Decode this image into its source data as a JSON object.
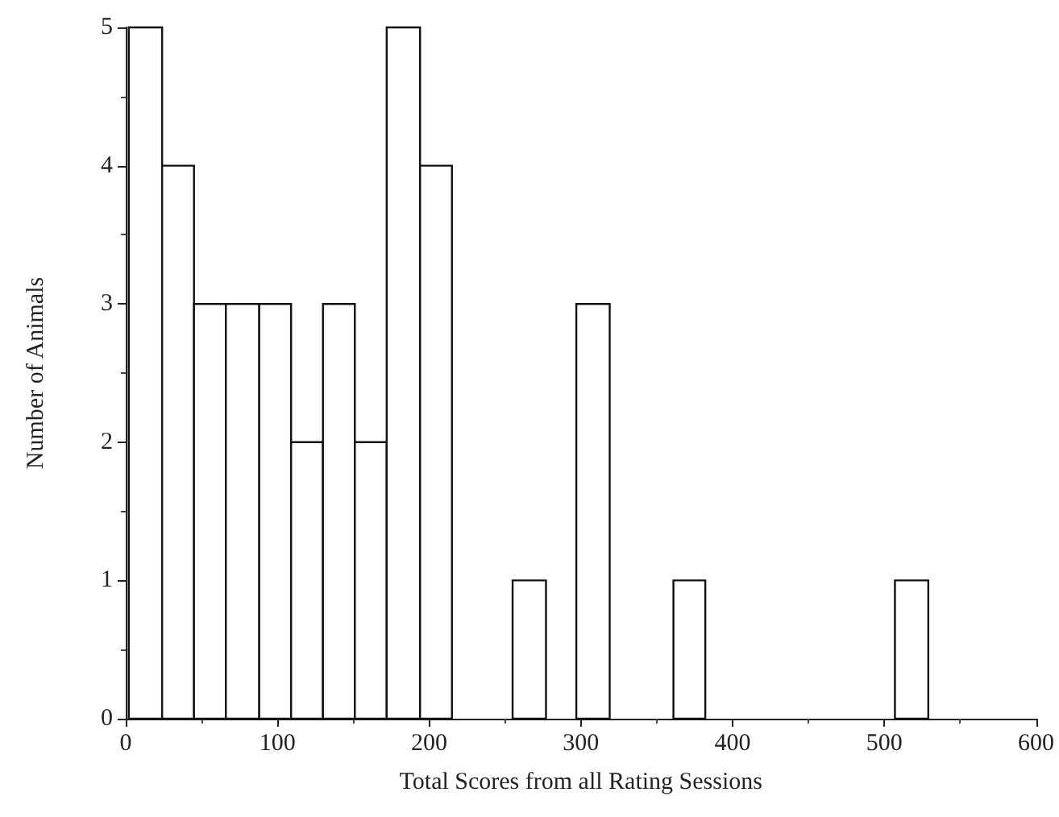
{
  "chart_data": {
    "type": "histogram",
    "xlabel": "Total Scores from all Rating Sessions",
    "ylabel": "Number of Animals",
    "bins": [
      2,
      24,
      45,
      66,
      88,
      109,
      130,
      151,
      172,
      194,
      215,
      255,
      277,
      297,
      319,
      361,
      382,
      507,
      529
    ],
    "values": [
      5,
      4,
      3,
      3,
      3,
      2,
      3,
      2,
      5,
      4,
      0,
      1,
      0,
      3,
      0,
      1,
      0,
      1
    ],
    "color": "#ffffff",
    "xlim": [
      0,
      600
    ],
    "xticks": [
      0,
      100,
      200,
      300,
      400,
      500,
      600
    ],
    "ylim": [
      0,
      5
    ],
    "yticks": [
      0,
      1,
      2,
      3,
      4,
      5
    ],
    "grid": false
  }
}
